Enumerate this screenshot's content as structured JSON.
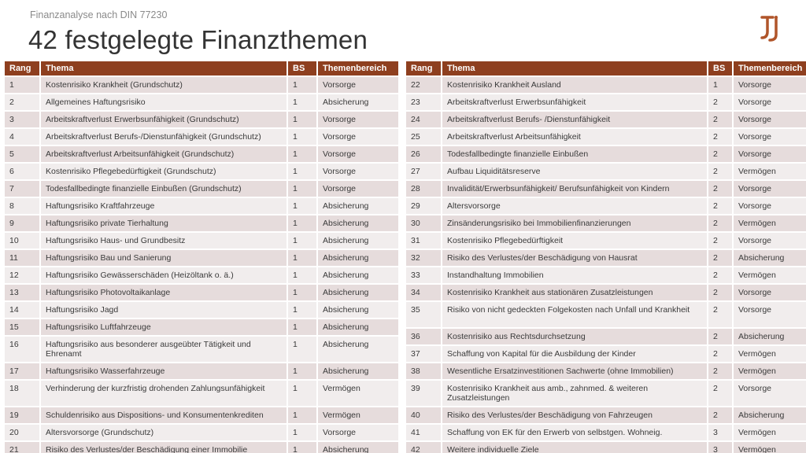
{
  "header": {
    "subtitle": "Finanzanalyse nach DIN 77230",
    "title": "42 festgelegte Finanzthemen"
  },
  "colors": {
    "header_bg": "#8e3f1f",
    "row_odd": "#e6dcdc",
    "row_even": "#f1eded",
    "logo": "#b0552a"
  },
  "columns": {
    "rang": "Rang",
    "thema": "Thema",
    "bs": "BS",
    "bereich": "Themenbereich"
  },
  "left_rows": [
    {
      "rang": "1",
      "thema": "Kostenrisiko Krankheit (Grundschutz)",
      "bs": "1",
      "bereich": "Vorsorge"
    },
    {
      "rang": "2",
      "thema": "Allgemeines Haftungsrisiko",
      "bs": "1",
      "bereich": "Absicherung"
    },
    {
      "rang": "3",
      "thema": "Arbeitskraftverlust Erwerbsunfähigkeit (Grundschutz)",
      "bs": "1",
      "bereich": "Vorsorge"
    },
    {
      "rang": "4",
      "thema": "Arbeitskraftverlust Berufs-/Dienstunfähigkeit (Grundschutz)",
      "bs": "1",
      "bereich": "Vorsorge"
    },
    {
      "rang": "5",
      "thema": "Arbeitskraftverlust Arbeitsunfähigkeit (Grundschutz)",
      "bs": "1",
      "bereich": "Vorsorge"
    },
    {
      "rang": "6",
      "thema": "Kostenrisiko Pflegebedürftigkeit (Grundschutz)",
      "bs": "1",
      "bereich": "Vorsorge"
    },
    {
      "rang": "7",
      "thema": "Todesfallbedingte finanzielle Einbußen (Grundschutz)",
      "bs": "1",
      "bereich": "Vorsorge"
    },
    {
      "rang": "8",
      "thema": "Haftungsrisiko Kraftfahrzeuge",
      "bs": "1",
      "bereich": "Absicherung"
    },
    {
      "rang": "9",
      "thema": "Haftungsrisiko private Tierhaltung",
      "bs": "1",
      "bereich": "Absicherung"
    },
    {
      "rang": "10",
      "thema": "Haftungsrisiko Haus- und Grundbesitz",
      "bs": "1",
      "bereich": "Absicherung"
    },
    {
      "rang": "11",
      "thema": "Haftungsrisiko Bau und Sanierung",
      "bs": "1",
      "bereich": "Absicherung"
    },
    {
      "rang": "12",
      "thema": "Haftungsrisiko Gewässerschäden (Heizöltank o. ä.)",
      "bs": "1",
      "bereich": "Absicherung"
    },
    {
      "rang": "13",
      "thema": "Haftungsrisiko Photovoltaikanlage",
      "bs": "1",
      "bereich": "Absicherung"
    },
    {
      "rang": "14",
      "thema": "Haftungsrisiko Jagd",
      "bs": "1",
      "bereich": "Absicherung"
    },
    {
      "rang": "15",
      "thema": "Haftungsrisiko Luftfahrzeuge",
      "bs": "1",
      "bereich": "Absicherung"
    },
    {
      "rang": "16",
      "thema": "Haftungsrisiko aus besonderer ausgeübter Tätigkeit und Ehrenamt",
      "bs": "1",
      "bereich": "Absicherung"
    },
    {
      "rang": "17",
      "thema": "Haftungsrisiko Wasserfahrzeuge",
      "bs": "1",
      "bereich": "Absicherung"
    },
    {
      "rang": "18",
      "thema": "Verhinderung der kurzfristig drohenden Zahlungsunfähigkeit",
      "bs": "1",
      "bereich": "Vermögen"
    },
    {
      "rang": "19",
      "thema": "Schuldenrisiko aus Dispositions- und Konsumentenkrediten",
      "bs": "1",
      "bereich": "Vermögen"
    },
    {
      "rang": "20",
      "thema": "Altersvorsorge (Grundschutz)",
      "bs": "1",
      "bereich": "Vorsorge"
    },
    {
      "rang": "21",
      "thema": "Risiko des Verlustes/der Beschädigung einer Immobilie",
      "bs": "1",
      "bereich": "Absicherung"
    }
  ],
  "right_rows": [
    {
      "rang": "22",
      "thema": "Kostenrisiko Krankheit Ausland",
      "bs": "1",
      "bereich": "Vorsorge"
    },
    {
      "rang": "23",
      "thema": "Arbeitskraftverlust Erwerbsunfähigkeit",
      "bs": "2",
      "bereich": "Vorsorge"
    },
    {
      "rang": "24",
      "thema": "Arbeitskraftverlust Berufs- /Dienstunfähigkeit",
      "bs": "2",
      "bereich": "Vorsorge"
    },
    {
      "rang": "25",
      "thema": "Arbeitskraftverlust Arbeitsunfähigkeit",
      "bs": "2",
      "bereich": "Vorsorge"
    },
    {
      "rang": "26",
      "thema": "Todesfallbedingte finanzielle Einbußen",
      "bs": "2",
      "bereich": "Vorsorge"
    },
    {
      "rang": "27",
      "thema": "Aufbau Liquiditätsreserve",
      "bs": "2",
      "bereich": "Vermögen"
    },
    {
      "rang": "28",
      "thema": "Invalidität/Erwerbsunfähigkeit/ Berufsunfähigkeit von Kindern",
      "bs": "2",
      "bereich": "Vorsorge"
    },
    {
      "rang": "29",
      "thema": "Altersvorsorge",
      "bs": "2",
      "bereich": "Vorsorge"
    },
    {
      "rang": "30",
      "thema": "Zinsänderungsrisiko bei Immobilienfinanzierungen",
      "bs": "2",
      "bereich": "Vermögen"
    },
    {
      "rang": "31",
      "thema": "Kostenrisiko Pflegebedürftigkeit",
      "bs": "2",
      "bereich": "Vorsorge"
    },
    {
      "rang": "32",
      "thema": "Risiko des Verlustes/der Beschädigung von Hausrat",
      "bs": "2",
      "bereich": "Absicherung"
    },
    {
      "rang": "33",
      "thema": "Instandhaltung Immobilien",
      "bs": "2",
      "bereich": "Vermögen"
    },
    {
      "rang": "34",
      "thema": "Kostenrisiko Krankheit aus stationären Zusatzleistungen",
      "bs": "2",
      "bereich": "Vorsorge"
    },
    {
      "rang": "35",
      "thema": "Risiko von nicht gedeckten Folgekosten nach Unfall und Krankheit",
      "bs": "2",
      "bereich": "Vorsorge"
    },
    {
      "rang": "36",
      "thema": "Kostenrisiko aus Rechtsdurchsetzung",
      "bs": "2",
      "bereich": "Absicherung"
    },
    {
      "rang": "37",
      "thema": "Schaffung von Kapital für die Ausbildung der Kinder",
      "bs": "2",
      "bereich": "Vermögen"
    },
    {
      "rang": "38",
      "thema": "Wesentliche Ersatzinvestitionen Sachwerte (ohne Immobilien)",
      "bs": "2",
      "bereich": "Vermögen"
    },
    {
      "rang": "39",
      "thema": "Kostenrisiko Krankheit aus amb., zahnmed. & weiteren Zusatzleistungen",
      "bs": "2",
      "bereich": "Vorsorge"
    },
    {
      "rang": "40",
      "thema": "Risiko des Verlustes/der Beschädigung von Fahrzeugen",
      "bs": "2",
      "bereich": "Absicherung"
    },
    {
      "rang": "41",
      "thema": "Schaffung von EK für den Erwerb von selbstgen. Wohneig.",
      "bs": "3",
      "bereich": "Vermögen"
    },
    {
      "rang": "42",
      "thema": "Weitere individuelle Ziele",
      "bs": "3",
      "bereich": "Vermögen"
    }
  ]
}
